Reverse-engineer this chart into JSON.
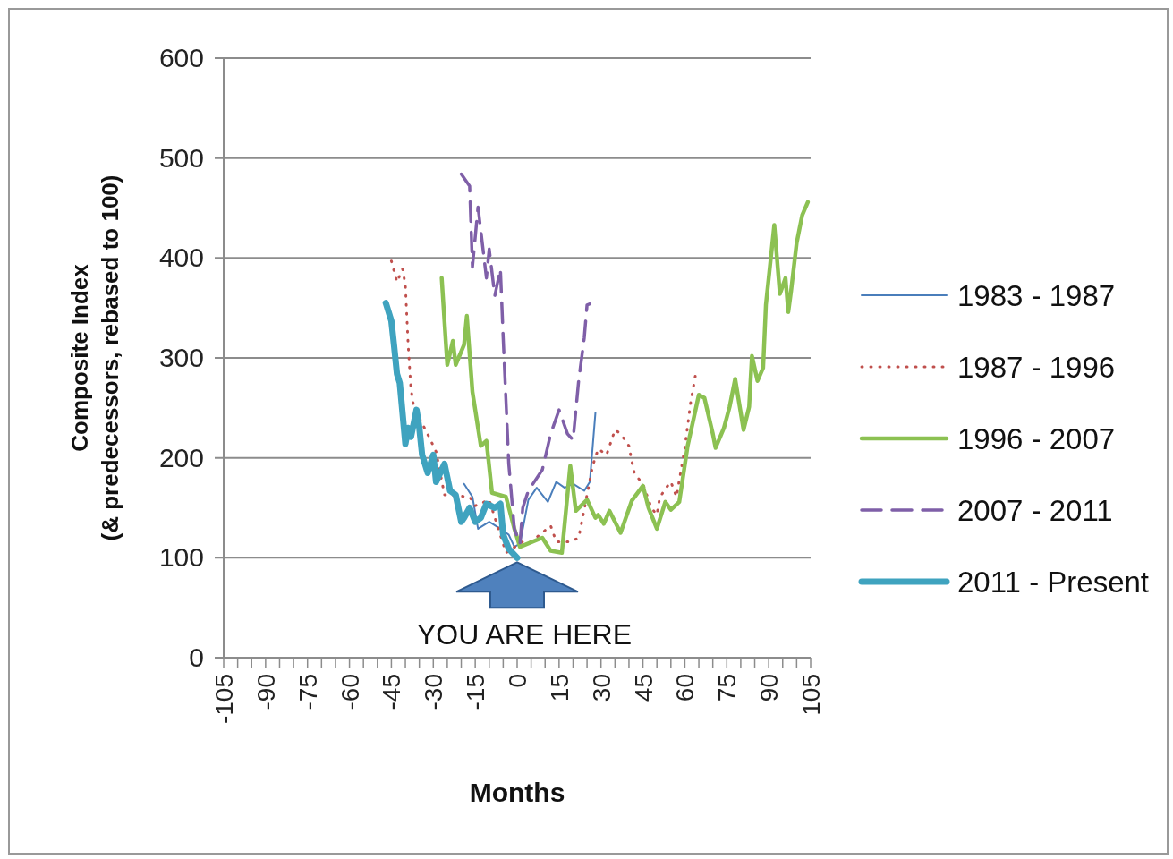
{
  "chart_data": {
    "type": "line",
    "xlabel": "Months",
    "ylabel": "Composite Index\n(& predecessors, rebased to 100)",
    "xlim": [
      -105,
      105
    ],
    "ylim": [
      0,
      600
    ],
    "yticks": [
      0,
      100,
      200,
      300,
      400,
      500,
      600
    ],
    "xticks": [
      -105,
      {
        "value": -100,
        "label": null
      },
      {
        "value": -95,
        "label": null
      },
      -90,
      {
        "value": -85,
        "label": null
      },
      {
        "value": -80,
        "label": null
      },
      -75,
      {
        "value": -70,
        "label": null
      },
      {
        "value": -65,
        "label": null
      },
      -60,
      {
        "value": -55,
        "label": null
      },
      {
        "value": -50,
        "label": null
      },
      -45,
      {
        "value": -40,
        "label": null
      },
      {
        "value": -35,
        "label": null
      },
      -30,
      {
        "value": -25,
        "label": null
      },
      {
        "value": -20,
        "label": null
      },
      -15,
      {
        "value": -10,
        "label": null
      },
      {
        "value": -5,
        "label": null
      },
      0,
      {
        "value": 5,
        "label": null
      },
      {
        "value": 10,
        "label": null
      },
      15,
      {
        "value": 20,
        "label": null
      },
      {
        "value": 25,
        "label": null
      },
      30,
      {
        "value": 35,
        "label": null
      },
      {
        "value": 40,
        "label": null
      },
      45,
      {
        "value": 50,
        "label": null
      },
      {
        "value": 55,
        "label": null
      },
      60,
      {
        "value": 65,
        "label": null
      },
      {
        "value": 70,
        "label": null
      },
      75,
      {
        "value": 80,
        "label": null
      },
      {
        "value": 85,
        "label": null
      },
      90,
      {
        "value": 95,
        "label": null
      },
      {
        "value": 100,
        "label": null
      },
      105
    ],
    "grid": "y",
    "legend": "right",
    "marker": "none",
    "annotations": [
      {
        "text": "YOU ARE HERE",
        "x": 0,
        "y": 100
      }
    ],
    "series": [
      {
        "name": "1983 - 1987",
        "color": "#4a7ebb",
        "line_style": "solid",
        "x": [
          -19,
          -16,
          -14,
          -10,
          -6,
          -3,
          -1,
          1,
          4,
          7,
          11,
          14,
          17,
          20,
          24,
          26,
          28
        ],
        "values": [
          174,
          161,
          129,
          136,
          129,
          123,
          111,
          114,
          158,
          170,
          156,
          176,
          170,
          174,
          167,
          176,
          245
        ]
      },
      {
        "name": "1987 - 1996",
        "color": "#c0504d",
        "line_style": "dotted",
        "x": [
          -45,
          -43,
          -41,
          -40,
          -39,
          -38,
          -37,
          -31,
          -29,
          -26,
          -17,
          -15,
          -10,
          -4,
          2,
          5,
          12,
          14,
          19,
          22,
          23,
          27,
          29,
          32,
          35,
          37,
          40,
          41,
          42,
          45,
          48,
          50,
          51,
          53,
          55,
          57,
          60,
          62,
          64
        ],
        "values": [
          397,
          376,
          389,
          373,
          313,
          269,
          251,
          218,
          206,
          163,
          161,
          152,
          158,
          105,
          116,
          116,
          132,
          116,
          116,
          120,
          134,
          192,
          209,
          203,
          228,
          224,
          212,
          197,
          184,
          174,
          150,
          143,
          160,
          169,
          176,
          161,
          210,
          254,
          286
        ]
      },
      {
        "name": "1996 - 2007",
        "color": "#8cc152",
        "line_style": "solid",
        "x": [
          -27,
          -25,
          -23,
          -22,
          -19,
          -18,
          -16,
          -13,
          -11,
          -9,
          -4,
          -1,
          1,
          9,
          12,
          16,
          19,
          21,
          25,
          28,
          29,
          31,
          33,
          37,
          41,
          45,
          47,
          50,
          53,
          55,
          58,
          61,
          65,
          67,
          70,
          71,
          74,
          76,
          78,
          81,
          83,
          84,
          86,
          88,
          89,
          92,
          94,
          96,
          97,
          98,
          100,
          102,
          104
        ],
        "values": [
          380,
          293,
          317,
          293,
          313,
          342,
          266,
          212,
          217,
          165,
          161,
          129,
          111,
          120,
          107,
          105,
          192,
          147,
          158,
          140,
          143,
          134,
          147,
          125,
          157,
          172,
          150,
          129,
          156,
          148,
          156,
          212,
          263,
          260,
          224,
          210,
          230,
          251,
          279,
          228,
          251,
          302,
          277,
          290,
          353,
          433,
          364,
          380,
          346,
          367,
          415,
          443,
          456
        ]
      },
      {
        "name": "2007 - 2011",
        "color": "#7f5fa8",
        "line_style": "dashed",
        "x": [
          -20,
          -17,
          -16,
          -14,
          -11,
          -10,
          -8,
          -6,
          -5,
          -3,
          -1,
          1,
          2,
          4,
          9,
          12,
          15,
          18,
          20,
          22,
          24,
          25,
          26
        ],
        "values": [
          484,
          472,
          391,
          451,
          380,
          409,
          362,
          389,
          320,
          194,
          129,
          114,
          150,
          167,
          188,
          224,
          248,
          224,
          218,
          277,
          320,
          353,
          354
        ]
      },
      {
        "name": "2011 - Present",
        "color": "#3fa3bf",
        "line_style": "solid",
        "x": [
          -47,
          -45,
          -44,
          -43,
          -42,
          -40,
          -39,
          -38,
          -36,
          -35,
          -34,
          -32,
          -30,
          -29,
          -26,
          -24,
          -22,
          -20,
          -19,
          -17,
          -15,
          -13,
          -11,
          -8,
          -6,
          -5,
          -3,
          0
        ],
        "values": [
          355,
          337,
          311,
          284,
          275,
          214,
          230,
          221,
          248,
          230,
          203,
          185,
          203,
          176,
          194,
          167,
          163,
          136,
          140,
          150,
          136,
          140,
          154,
          150,
          154,
          123,
          109,
          100
        ]
      }
    ]
  }
}
